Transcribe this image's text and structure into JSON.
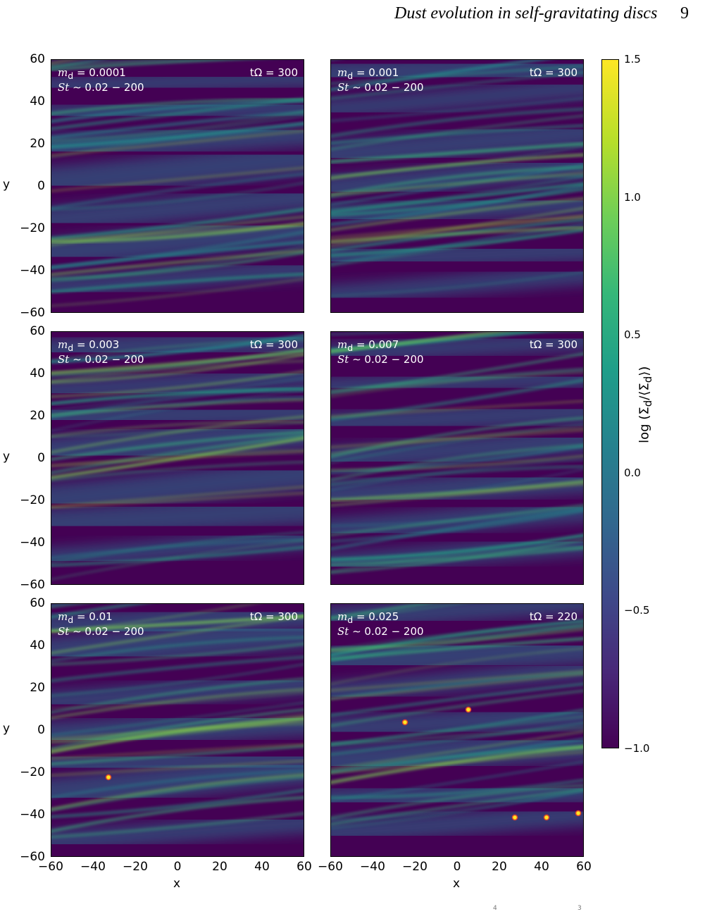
{
  "header": {
    "running_title": "Dust evolution in self-gravitating discs",
    "page_number": "9"
  },
  "colors": {
    "field_dark": "#440154",
    "field_mid": "#21918c",
    "field_bright": "#fde725",
    "clump": "#e0452a",
    "label_text": "#ffffff"
  },
  "panels": [
    {
      "md": "= 0.0001",
      "st": "∼ 0.02 − 200",
      "t": "tΩ = 300",
      "clumps": []
    },
    {
      "md": "= 0.001",
      "st": "∼ 0.02 − 200",
      "t": "tΩ = 300",
      "clumps": []
    },
    {
      "md": "= 0.003",
      "st": "∼ 0.02 − 200",
      "t": "tΩ = 300",
      "clumps": []
    },
    {
      "md": "= 0.007",
      "st": "∼ 0.02 − 200",
      "t": "tΩ = 300",
      "clumps": []
    },
    {
      "md": "= 0.01",
      "st": "∼ 0.02 − 200",
      "t": "tΩ = 300",
      "clumps": [
        {
          "x": -33,
          "y": -22
        }
      ]
    },
    {
      "md": "= 0.025",
      "st": "∼ 0.02 − 200",
      "t": "tΩ = 220",
      "clumps": [
        {
          "x": -25,
          "y": 4
        },
        {
          "x": 5,
          "y": 10
        },
        {
          "x": 27,
          "y": -41
        },
        {
          "x": 42,
          "y": -41
        },
        {
          "x": 57,
          "y": -39
        }
      ]
    }
  ],
  "axes": {
    "xlabel": "x",
    "ylabel": "y",
    "ticks": [
      "60",
      "40",
      "20",
      "0",
      "−20",
      "−40",
      "−60"
    ],
    "xticks_left": [
      "−60",
      "−40",
      "−20",
      "0",
      "20",
      "40",
      "60"
    ],
    "xticks_right": [
      "−60",
      "−40",
      "−20",
      "0",
      "20",
      "40",
      "60"
    ]
  },
  "colorbar": {
    "label": "log (Σ_d/⟨Σ_d⟩)",
    "ticks": [
      "1.5",
      "1.0",
      "0.5",
      "0.0",
      "−0.5",
      "−1.0"
    ],
    "range": [
      -1.0,
      1.5
    ]
  },
  "caption_fragment": {
    "sup4": "4",
    "sup3": "3"
  }
}
